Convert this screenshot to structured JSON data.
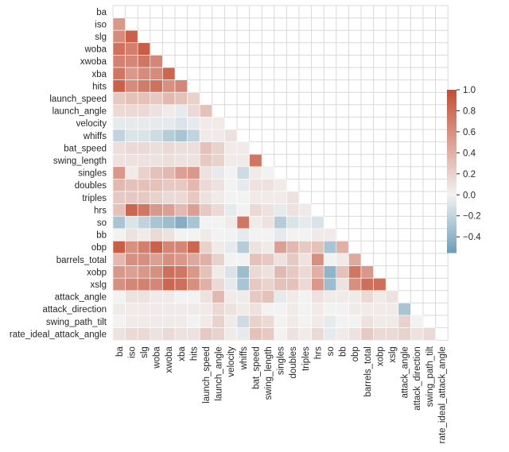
{
  "chart_data": {
    "type": "heatmap",
    "variant": "lower-triangle correlation matrix",
    "labels": [
      "ba",
      "iso",
      "slg",
      "woba",
      "xwoba",
      "xba",
      "hits",
      "launch_speed",
      "launch_angle",
      "velocity",
      "whiffs",
      "bat_speed",
      "swing_length",
      "singles",
      "doubles",
      "triples",
      "hrs",
      "so",
      "bb",
      "obp",
      "barrels_total",
      "xobp",
      "xslg",
      "attack_angle",
      "attack_direction",
      "swing_path_tilt",
      "rate_ideal_attack_angle"
    ],
    "colorbar": {
      "vmin": -0.55,
      "vmax": 1.0,
      "ticks": [
        1.0,
        0.8,
        0.6,
        0.4,
        0.2,
        0.0,
        -0.2,
        -0.4
      ],
      "tick_labels": [
        "1.0",
        "0.8",
        "0.6",
        "0.4",
        "0.2",
        "0.0",
        "−0.2",
        "−0.4"
      ]
    },
    "colors": {
      "negative": "#6d9eb8",
      "neutral": "#f2f2f2",
      "positive": "#c44e34",
      "grid": "#d9d9d9"
    },
    "grid": true,
    "rows": [
      [],
      [
        0.55
      ],
      [
        0.62,
        0.88
      ],
      [
        0.78,
        0.7,
        0.9
      ],
      [
        0.68,
        0.65,
        0.75,
        0.65
      ],
      [
        0.75,
        0.55,
        0.62,
        0.62,
        0.85
      ],
      [
        0.88,
        0.62,
        0.72,
        0.78,
        0.6,
        0.65
      ],
      [
        0.25,
        0.3,
        0.3,
        0.25,
        0.35,
        0.3,
        0.2
      ],
      [
        0.15,
        0.15,
        0.15,
        0.1,
        0.05,
        -0.05,
        0.15,
        0.3
      ],
      [
        -0.05,
        -0.05,
        -0.05,
        -0.05,
        -0.05,
        -0.1,
        -0.05,
        0.05,
        0.05
      ],
      [
        -0.2,
        -0.1,
        -0.1,
        -0.15,
        -0.25,
        -0.3,
        -0.2,
        0.05,
        0.05,
        0.1
      ],
      [
        0.12,
        0.15,
        0.15,
        0.12,
        0.15,
        0.12,
        0.12,
        0.3,
        0.2,
        0.05,
        0.05
      ],
      [
        0.1,
        0.1,
        0.1,
        0.1,
        0.12,
        0.1,
        0.1,
        0.25,
        0.2,
        0.05,
        0.05,
        0.75
      ],
      [
        0.55,
        0.05,
        0.2,
        0.3,
        0.35,
        0.5,
        0.55,
        0.1,
        -0.05,
        0.0,
        -0.15,
        0.05,
        0.0
      ],
      [
        0.35,
        0.3,
        0.3,
        0.3,
        0.25,
        0.25,
        0.35,
        0.15,
        0.1,
        0.0,
        -0.05,
        0.1,
        0.1,
        0.05
      ],
      [
        0.25,
        0.25,
        0.25,
        0.2,
        0.15,
        0.15,
        0.25,
        0.1,
        0.05,
        0.0,
        0.0,
        0.05,
        0.05,
        0.05,
        0.1
      ],
      [
        0.3,
        0.85,
        0.75,
        0.55,
        0.5,
        0.35,
        0.5,
        0.25,
        0.15,
        -0.05,
        0.0,
        0.15,
        0.1,
        -0.05,
        0.1,
        0.05
      ],
      [
        -0.3,
        -0.1,
        -0.2,
        -0.3,
        -0.35,
        -0.45,
        -0.3,
        0.0,
        0.0,
        0.05,
        0.75,
        0.05,
        0.1,
        -0.25,
        -0.1,
        -0.05,
        -0.1
      ],
      [
        0.0,
        0.1,
        0.05,
        0.15,
        0.1,
        0.0,
        0.0,
        0.05,
        0.0,
        0.0,
        -0.05,
        0.0,
        0.0,
        -0.05,
        0.0,
        0.0,
        0.05,
        0.05
      ],
      [
        0.9,
        0.6,
        0.7,
        0.88,
        0.65,
        0.65,
        0.85,
        0.2,
        0.05,
        -0.05,
        -0.25,
        0.1,
        0.05,
        0.5,
        0.35,
        0.25,
        0.3,
        -0.3,
        0.4
      ],
      [
        0.35,
        0.6,
        0.6,
        0.5,
        0.6,
        0.55,
        0.45,
        0.4,
        0.2,
        0.0,
        0.0,
        0.3,
        0.25,
        0.1,
        0.25,
        0.1,
        0.6,
        0.0,
        0.05,
        0.45
      ],
      [
        0.55,
        0.5,
        0.55,
        0.6,
        0.8,
        0.75,
        0.55,
        0.3,
        0.05,
        -0.1,
        -0.35,
        0.15,
        0.1,
        0.35,
        0.25,
        0.15,
        0.4,
        -0.4,
        0.3,
        0.75,
        0.55
      ],
      [
        0.6,
        0.65,
        0.68,
        0.65,
        0.85,
        0.8,
        0.6,
        0.4,
        0.15,
        -0.05,
        -0.3,
        0.25,
        0.2,
        0.3,
        0.3,
        0.15,
        0.55,
        -0.35,
        0.1,
        0.6,
        0.8,
        0.8
      ],
      [
        0.0,
        0.1,
        0.1,
        0.05,
        0.05,
        0.0,
        0.0,
        0.1,
        0.35,
        0.05,
        0.05,
        0.25,
        0.3,
        -0.05,
        0.05,
        0.0,
        0.1,
        0.05,
        0.05,
        0.05,
        0.15,
        0.05,
        0.1
      ],
      [
        0.05,
        0.05,
        0.05,
        0.05,
        0.05,
        0.05,
        0.05,
        0.05,
        0.15,
        0.1,
        0.05,
        0.1,
        0.0,
        0.0,
        0.05,
        0.0,
        0.05,
        0.0,
        0.0,
        0.05,
        0.05,
        0.05,
        0.05,
        -0.3
      ],
      [
        0.0,
        0.05,
        0.05,
        0.05,
        0.05,
        0.05,
        0.0,
        0.05,
        0.2,
        0.05,
        -0.15,
        0.2,
        0.15,
        0.0,
        0.05,
        0.0,
        0.05,
        -0.05,
        0.0,
        0.0,
        0.1,
        0.05,
        0.05,
        0.2,
        0.0
      ],
      [
        0.1,
        0.15,
        0.15,
        0.1,
        0.15,
        0.1,
        0.1,
        0.25,
        0.2,
        0.05,
        -0.05,
        0.3,
        0.25,
        0.0,
        0.1,
        0.05,
        0.15,
        -0.05,
        0.05,
        0.1,
        0.25,
        0.15,
        0.15,
        0.2,
        0.1,
        0.15
      ]
    ]
  }
}
